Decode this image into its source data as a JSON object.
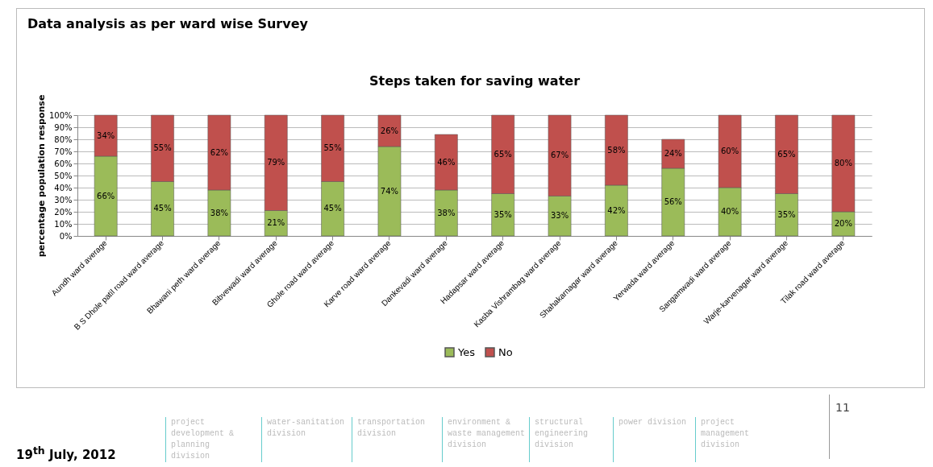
{
  "chart_data": {
    "type": "bar",
    "stacked": true,
    "title": "Steps taken for saving water",
    "ylabel": "percentage population response",
    "categories": [
      "Aundh ward average",
      "B S Dhole patil road ward average",
      "Bhawani peth ward average",
      "Bibvewadi ward average",
      "Ghole road ward average",
      "Karve road ward average",
      "Dankevadi ward average",
      "Hadapsar ward average",
      "Kasba Vishrambag ward average",
      "Shahakarnagar ward average",
      "Yerwada ward average",
      "Sangamwadi ward average",
      "Warje-karvenagar ward average",
      "Tilak road ward average"
    ],
    "series": [
      {
        "name": "Yes",
        "color": "#9bbb59",
        "values": [
          66,
          45,
          38,
          21,
          45,
          74,
          38,
          35,
          33,
          42,
          56,
          40,
          35,
          20
        ],
        "value_labels": [
          "66%",
          "45%",
          "38%",
          "21%",
          "45%",
          "74%",
          "38%",
          "35%",
          "33%",
          "42%",
          "56%",
          "40%",
          "35%",
          "20%"
        ]
      },
      {
        "name": "No",
        "color": "#c0504d",
        "values": [
          34,
          55,
          62,
          79,
          55,
          26,
          46,
          65,
          67,
          58,
          24,
          60,
          65,
          80
        ],
        "value_labels": [
          "34%",
          "55%",
          "62%",
          "79%",
          "55%",
          "26%",
          "46%",
          "65%",
          "67%",
          "58%",
          "24%",
          "60%",
          "65%",
          "80%"
        ]
      }
    ],
    "ylim": [
      0,
      100
    ],
    "yticks": [
      {
        "value": 0,
        "label": "0%"
      },
      {
        "value": 10,
        "label": "10%"
      },
      {
        "value": 20,
        "label": "20%"
      },
      {
        "value": 30,
        "label": "30%"
      },
      {
        "value": 40,
        "label": "40%"
      },
      {
        "value": 50,
        "label": "50%"
      },
      {
        "value": 60,
        "label": "60%"
      },
      {
        "value": 70,
        "label": "70%"
      },
      {
        "value": 80,
        "label": "80%"
      },
      {
        "value": 90,
        "label": "90%"
      },
      {
        "value": 100,
        "label": "100%"
      }
    ],
    "grid": "y",
    "legend": "bottom",
    "annotations": [
      "Data analysis as per ward wise Survey",
      "19$^{th}$ July, 2012",
      "11",
      "project development & planning division",
      "water-sanitation division",
      "transportation division",
      "environment & waste management division",
      "structural engineering division",
      "power division",
      "project management division"
    ]
  }
}
